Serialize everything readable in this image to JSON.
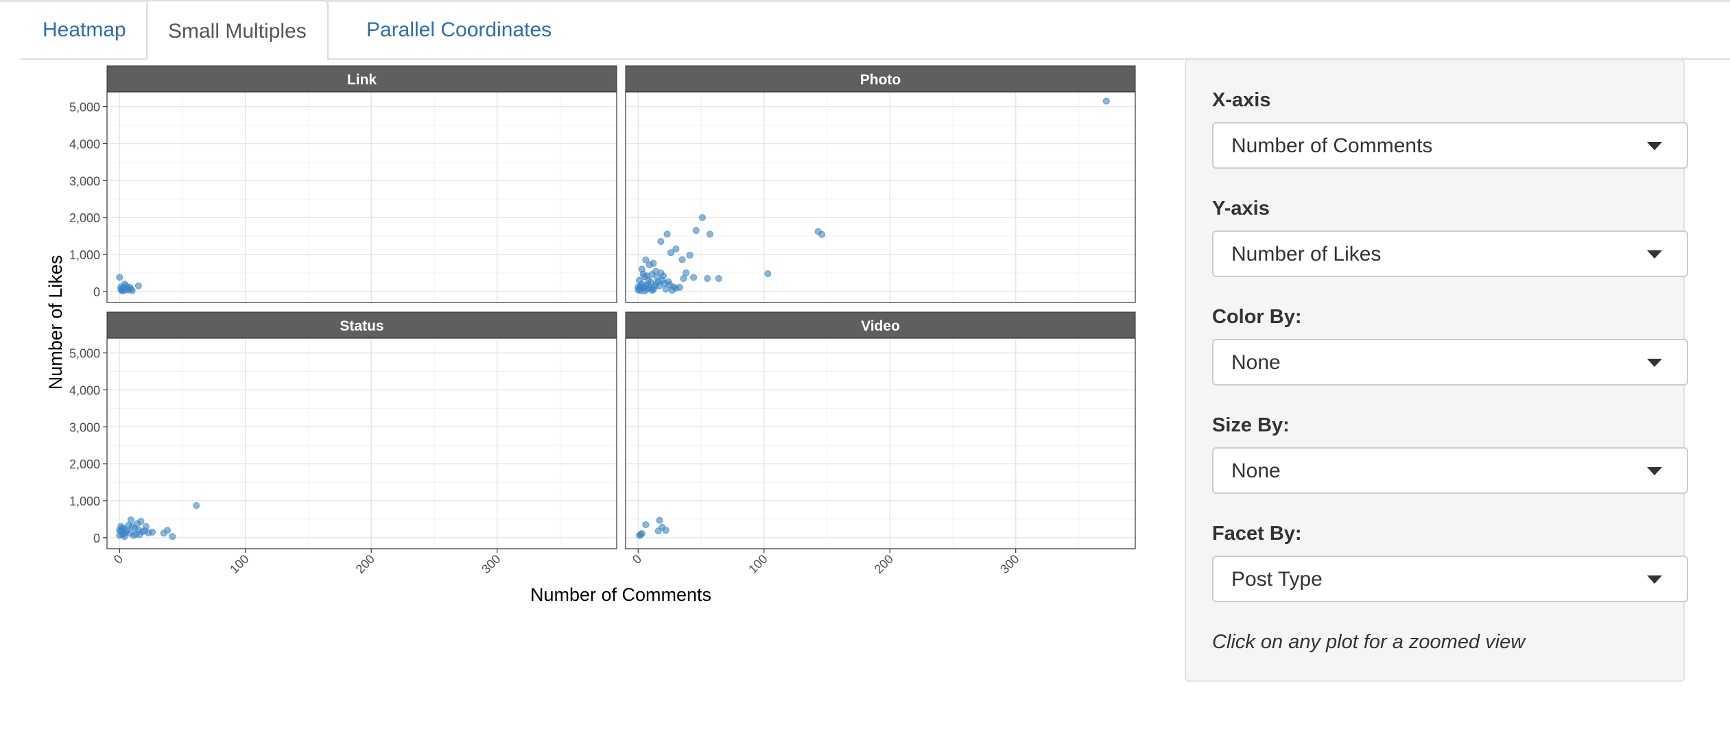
{
  "tabs": [
    {
      "label": "Heatmap",
      "active": false
    },
    {
      "label": "Small Multiples",
      "active": true
    },
    {
      "label": "Parallel Coordinates",
      "active": false
    }
  ],
  "controls": {
    "x_axis": {
      "label": "X-axis",
      "value": "Number of Comments"
    },
    "y_axis": {
      "label": "Y-axis",
      "value": "Number of Likes"
    },
    "color_by": {
      "label": "Color By:",
      "value": "None"
    },
    "size_by": {
      "label": "Size By:",
      "value": "None"
    },
    "facet_by": {
      "label": "Facet By:",
      "value": "Post Type"
    },
    "note": "Click on any plot for a zoomed view"
  },
  "colors": {
    "point": "#3a85c7",
    "strip": "#5f5f5f",
    "tab_link": "#2c6fb0"
  },
  "icons": {
    "select_caret": "caret-down-icon"
  },
  "chart_data": {
    "type": "scatter",
    "xlabel": "Number of Comments",
    "ylabel": "Number of Likes",
    "xlim": [
      -10,
      395
    ],
    "ylim": [
      -300,
      5400
    ],
    "x_ticks": [
      0,
      100,
      200,
      300
    ],
    "x_tick_labels": [
      "0",
      "100",
      "200",
      "300"
    ],
    "y_ticks": [
      0,
      1000,
      2000,
      3000,
      4000,
      5000
    ],
    "y_tick_labels": [
      "0",
      "1,000",
      "2,000",
      "3,000",
      "4,000",
      "5,000"
    ],
    "grid": true,
    "facets": [
      {
        "name": "Link",
        "points": [
          [
            0,
            380
          ],
          [
            1,
            120
          ],
          [
            2,
            60
          ],
          [
            3,
            90
          ],
          [
            4,
            30
          ],
          [
            5,
            150
          ],
          [
            6,
            80
          ],
          [
            7,
            40
          ],
          [
            8,
            110
          ],
          [
            9,
            60
          ],
          [
            10,
            20
          ],
          [
            2,
            10
          ],
          [
            15,
            150
          ],
          [
            4,
            200
          ],
          [
            1,
            50
          ]
        ]
      },
      {
        "name": "Photo",
        "points": [
          [
            372,
            5150
          ],
          [
            51,
            2000
          ],
          [
            46,
            1650
          ],
          [
            23,
            1550
          ],
          [
            57,
            1550
          ],
          [
            18,
            1350
          ],
          [
            143,
            1620
          ],
          [
            146,
            1540
          ],
          [
            30,
            1150
          ],
          [
            26,
            1050
          ],
          [
            41,
            980
          ],
          [
            35,
            860
          ],
          [
            6,
            850
          ],
          [
            12,
            760
          ],
          [
            9,
            720
          ],
          [
            3,
            600
          ],
          [
            103,
            480
          ],
          [
            38,
            500
          ],
          [
            44,
            380
          ],
          [
            55,
            350
          ],
          [
            64,
            350
          ],
          [
            20,
            420
          ],
          [
            15,
            380
          ],
          [
            5,
            400
          ],
          [
            8,
            300
          ],
          [
            10,
            250
          ],
          [
            14,
            200
          ],
          [
            17,
            150
          ],
          [
            25,
            180
          ],
          [
            28,
            120
          ],
          [
            30,
            90
          ],
          [
            2,
            150
          ],
          [
            1,
            80
          ],
          [
            0,
            40
          ],
          [
            4,
            100
          ],
          [
            7,
            60
          ],
          [
            11,
            30
          ],
          [
            13,
            120
          ],
          [
            16,
            260
          ],
          [
            19,
            300
          ],
          [
            21,
            220
          ],
          [
            24,
            260
          ],
          [
            1,
            300
          ],
          [
            3,
            200
          ],
          [
            6,
            150
          ],
          [
            9,
            90
          ],
          [
            12,
            50
          ],
          [
            0,
            120
          ],
          [
            2,
            20
          ],
          [
            5,
            10
          ],
          [
            8,
            180
          ],
          [
            22,
            60
          ],
          [
            27,
            30
          ],
          [
            33,
            110
          ],
          [
            36,
            350
          ],
          [
            18,
            500
          ],
          [
            14,
            540
          ],
          [
            11,
            460
          ],
          [
            7,
            420
          ],
          [
            4,
            470
          ]
        ]
      },
      {
        "name": "Status",
        "points": [
          [
            61,
            870
          ],
          [
            9,
            480
          ],
          [
            17,
            440
          ],
          [
            21,
            300
          ],
          [
            12,
            250
          ],
          [
            38,
            200
          ],
          [
            35,
            120
          ],
          [
            42,
            30
          ],
          [
            26,
            150
          ],
          [
            5,
            150
          ],
          [
            3,
            250
          ],
          [
            1,
            180
          ],
          [
            0,
            60
          ],
          [
            2,
            80
          ],
          [
            4,
            30
          ],
          [
            6,
            200
          ],
          [
            8,
            120
          ],
          [
            10,
            300
          ],
          [
            13,
            90
          ],
          [
            15,
            210
          ],
          [
            18,
            160
          ],
          [
            7,
            330
          ],
          [
            11,
            60
          ],
          [
            14,
            380
          ],
          [
            1,
            300
          ],
          [
            3,
            100
          ],
          [
            0,
            200
          ],
          [
            2,
            250
          ],
          [
            16,
            80
          ],
          [
            20,
            180
          ],
          [
            23,
            130
          ]
        ]
      },
      {
        "name": "Video",
        "points": [
          [
            17,
            470
          ],
          [
            6,
            350
          ],
          [
            19,
            280
          ],
          [
            22,
            200
          ],
          [
            16,
            180
          ],
          [
            2,
            80
          ],
          [
            3,
            110
          ],
          [
            1,
            60
          ]
        ]
      }
    ]
  }
}
